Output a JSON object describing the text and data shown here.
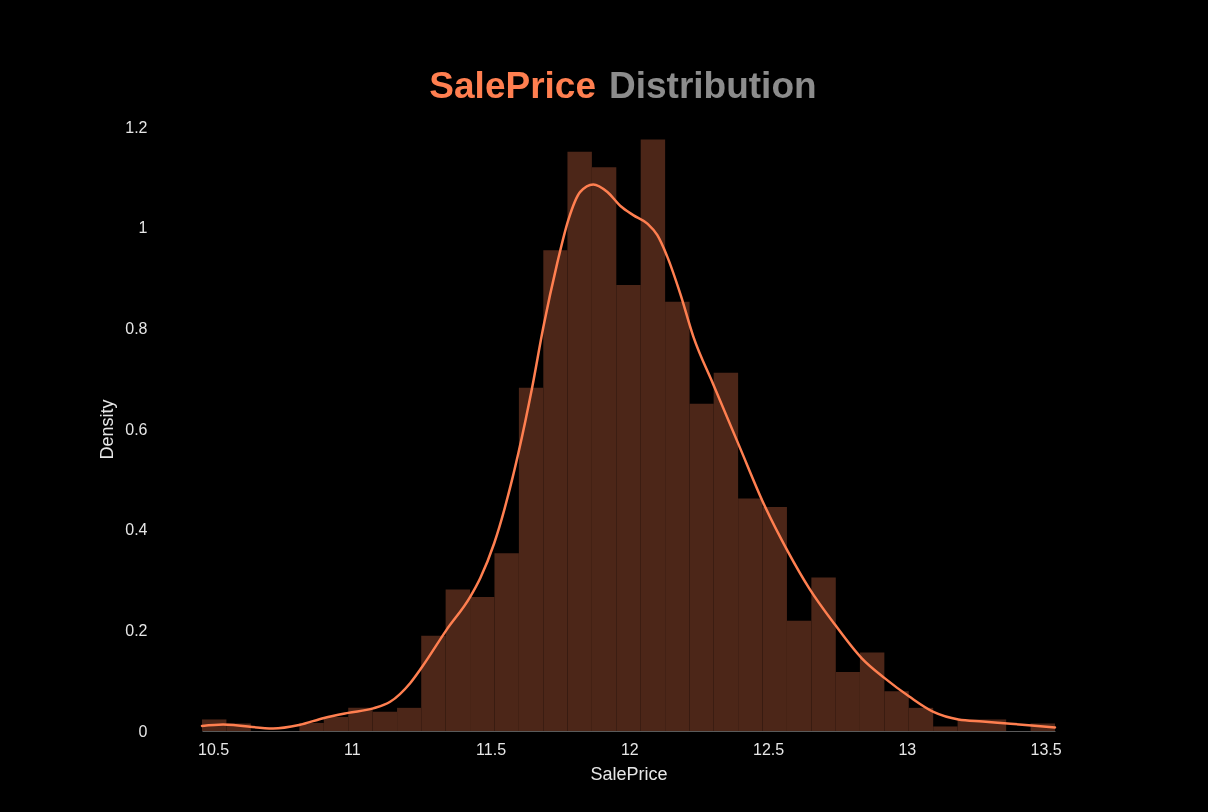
{
  "chart_data": {
    "type": "histogram",
    "title": "SalePrice Distribution",
    "xlabel": "SalePrice",
    "ylabel": "Density",
    "bins": [
      10.46,
      10.548,
      10.636,
      10.723,
      10.811,
      10.899,
      10.987,
      11.075,
      11.163,
      11.25,
      11.338,
      11.426,
      11.514,
      11.602,
      11.69,
      11.777,
      11.865,
      11.953,
      12.041,
      12.129,
      12.217,
      12.304,
      12.392,
      12.48,
      12.568,
      12.656,
      12.744,
      12.831,
      12.919,
      13.007,
      13.095,
      13.183,
      13.271,
      13.358,
      13.446,
      13.534
    ],
    "series": [
      {
        "type": "histogram",
        "color": "#4c2618",
        "values": [
          0.023,
          0.015,
          0,
          0,
          0.016,
          0.028,
          0.046,
          0.038,
          0.046,
          0.189,
          0.281,
          0.266,
          0.353,
          0.682,
          0.955,
          1.151,
          1.12,
          0.886,
          1.175,
          0.853,
          0.65,
          0.712,
          0.462,
          0.445,
          0.219,
          0.305,
          0.117,
          0.156,
          0.079,
          0.046,
          0.009,
          0.023,
          0.023,
          0,
          0.015
        ]
      },
      {
        "type": "line",
        "color": "#ff7f50",
        "x": [
          10.46,
          10.536,
          10.716,
          10.81,
          10.9,
          10.987,
          11.077,
          11.138,
          11.21,
          11.254,
          11.34,
          11.427,
          11.463,
          11.513,
          11.6,
          11.65,
          11.69,
          11.74,
          11.78,
          11.823,
          11.87,
          11.921,
          11.968,
          12.014,
          12.065,
          12.101,
          12.137,
          12.184,
          12.231,
          12.303,
          12.397,
          12.483,
          12.571,
          12.65,
          12.743,
          12.837,
          12.92,
          13.01,
          13.096,
          13.186,
          13.273,
          13.363,
          13.45,
          13.534
        ],
        "values": [
          0.01,
          0.013,
          0.005,
          0.012,
          0.026,
          0.036,
          0.045,
          0.058,
          0.095,
          0.128,
          0.2,
          0.267,
          0.304,
          0.373,
          0.552,
          0.683,
          0.802,
          0.929,
          1.015,
          1.071,
          1.086,
          1.071,
          1.043,
          1.025,
          1.008,
          0.985,
          0.942,
          0.868,
          0.783,
          0.688,
          0.565,
          0.453,
          0.357,
          0.282,
          0.21,
          0.145,
          0.105,
          0.068,
          0.038,
          0.023,
          0.019,
          0.015,
          0.011,
          0.007
        ]
      }
    ],
    "xlim": [
      10.46,
      13.534
    ],
    "xticks": [
      10.5,
      11,
      11.5,
      12,
      12.5,
      13,
      13.5
    ],
    "ylim": [
      0,
      1.2
    ],
    "yticks": [
      0,
      0.2,
      0.4,
      0.6,
      0.8,
      1,
      1.2
    ]
  }
}
